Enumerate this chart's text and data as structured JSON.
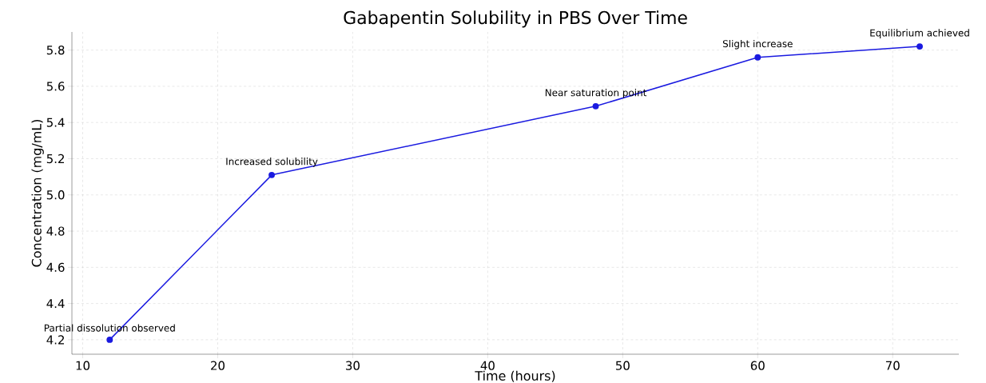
{
  "chart_data": {
    "type": "line",
    "title": "Gabapentin Solubility in PBS Over Time",
    "xlabel": "Time (hours)",
    "ylabel": "Concentration (mg/mL)",
    "x": [
      12,
      24,
      48,
      60,
      72
    ],
    "series": [
      {
        "color": "#1a1ae0",
        "values": [
          4.2,
          5.11,
          5.49,
          5.76,
          5.82
        ]
      }
    ],
    "xlim": [
      9.2,
      74.9
    ],
    "ylim": [
      4.12,
      5.9
    ],
    "xticks": [
      10,
      20,
      30,
      40,
      50,
      60,
      70
    ],
    "yticks": [
      4.2,
      4.4,
      4.6,
      4.8,
      {
        "value": 5.0,
        "label": "5.0"
      },
      5.2,
      5.4,
      5.6,
      5.8
    ],
    "grid": true,
    "marker": "circle",
    "line_style": "solid",
    "annotations": [
      {
        "text": "Partial dissolution observed",
        "x": 12,
        "y": 4.2
      },
      {
        "text": "Increased solubility",
        "x": 24,
        "y": 5.11
      },
      {
        "text": "Near saturation point",
        "x": 48,
        "y": 5.49
      },
      {
        "text": "Slight increase",
        "x": 60,
        "y": 5.76
      },
      {
        "text": "Equilibrium achieved",
        "x": 72,
        "y": 5.82
      }
    ]
  }
}
